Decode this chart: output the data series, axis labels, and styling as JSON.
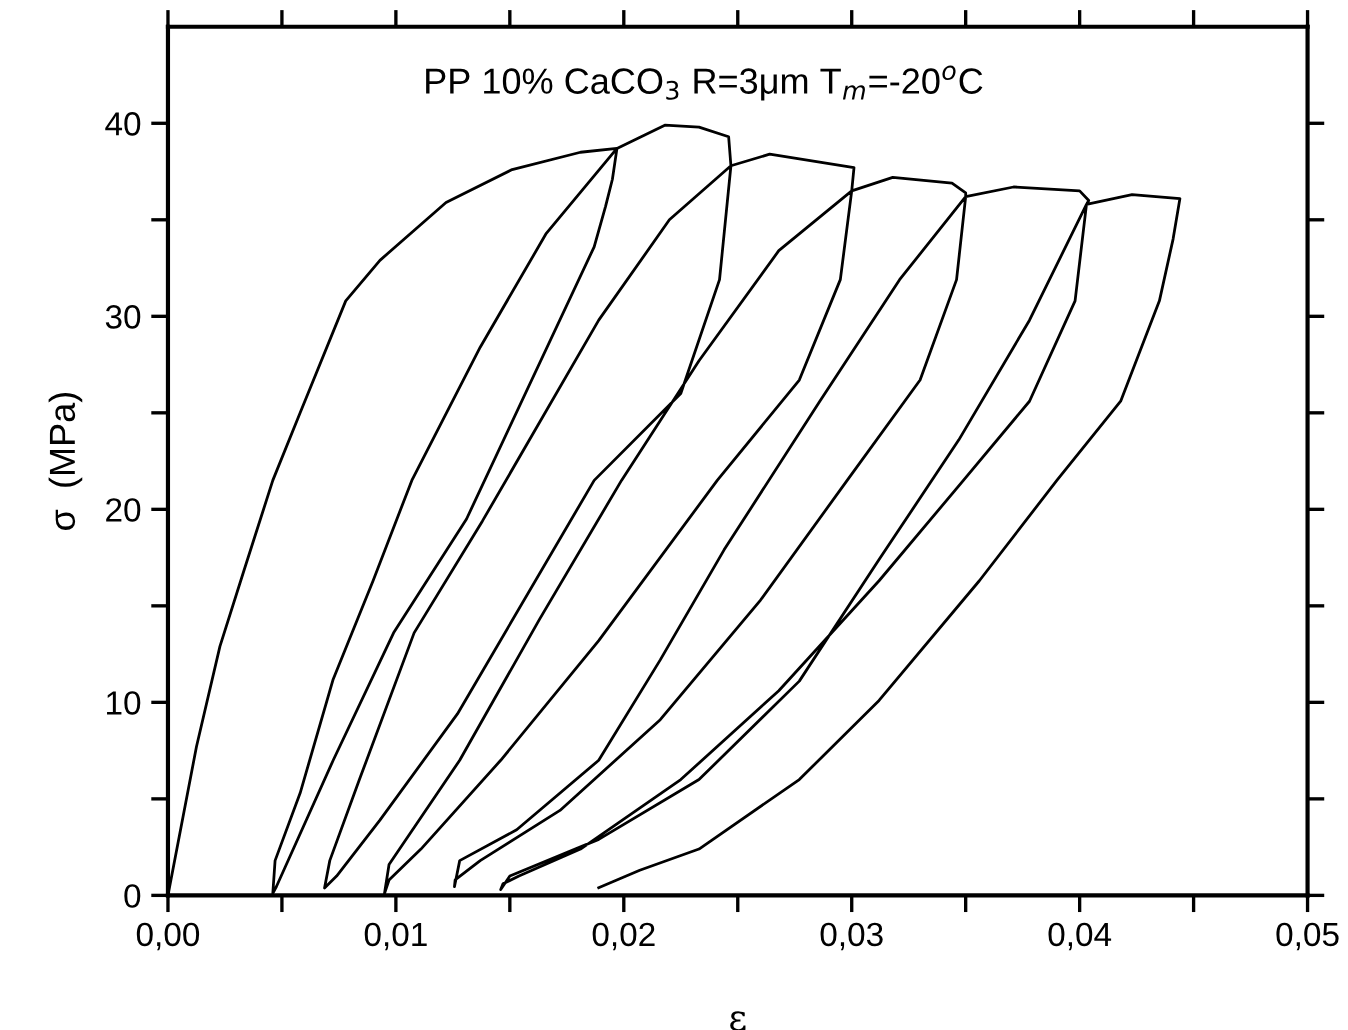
{
  "chart_data": {
    "type": "line",
    "title": "PP 10% CaCO$_{3}$ R=3μm T$_{m}$=-20$^{o}$C",
    "xlabel": "ε",
    "ylabel": "σ  (MPa)",
    "xlim": [
      0,
      0.05
    ],
    "ylim": [
      0,
      45
    ],
    "xticks": [
      {
        "value": 0,
        "label": "0,00"
      },
      {
        "value": 0.005,
        "label": null
      },
      {
        "value": 0.01,
        "label": "0,01"
      },
      {
        "value": 0.015,
        "label": null
      },
      {
        "value": 0.02,
        "label": "0,02"
      },
      {
        "value": 0.025,
        "label": null
      },
      {
        "value": 0.03,
        "label": "0,03"
      },
      {
        "value": 0.035,
        "label": null
      },
      {
        "value": 0.04,
        "label": "0,04"
      },
      {
        "value": 0.045,
        "label": null
      },
      {
        "value": 0.05,
        "label": "0,05"
      }
    ],
    "yticks": [
      0,
      {
        "value": 5,
        "label": null
      },
      10,
      {
        "value": 15,
        "label": null
      },
      20,
      {
        "value": 25,
        "label": null
      },
      30,
      {
        "value": 35,
        "label": null
      },
      40
    ],
    "grid": false,
    "legend": false,
    "marker": "none",
    "line_style": "solid",
    "series": [
      {
        "color": "#000000",
        "x": [
          0,
          0.00125,
          0.00228,
          0.0033,
          0.0046,
          0.0058,
          0.0078,
          0.0093,
          0.0122,
          0.0151,
          0.0181,
          0.0197,
          0.0195,
          0.0192,
          0.0187,
          0.0131,
          0.0099,
          0.00725,
          0.00476,
          0.0046,
          0.0047,
          0.0058,
          0.00725,
          0.009,
          0.0107,
          0.0137,
          0.0166,
          0.0197,
          0.0218,
          0.0233,
          0.0246,
          0.0247,
          0.0242,
          0.0225,
          0.0187,
          0.0127,
          0.0093,
          0.0074,
          0.00687,
          0.0071,
          0.0084,
          0.0108,
          0.0138,
          0.0189,
          0.022,
          0.0247,
          0.0264,
          0.0301,
          0.03,
          0.0295,
          0.0277,
          0.0241,
          0.0189,
          0.0146,
          0.0111,
          0.0097,
          0.0095,
          0.0097,
          0.0128,
          0.0163,
          0.0199,
          0.0233,
          0.0268,
          0.03,
          0.0318,
          0.0344,
          0.035,
          0.035,
          0.0346,
          0.033,
          0.0298,
          0.026,
          0.0216,
          0.0172,
          0.0137,
          0.0126,
          0.01257,
          0.0128,
          0.0153,
          0.0189,
          0.0216,
          0.0244,
          0.0286,
          0.0321,
          0.035,
          0.0371,
          0.04,
          0.0404,
          0.0403,
          0.0398,
          0.0378,
          0.0349,
          0.0312,
          0.0268,
          0.0225,
          0.0181,
          0.0154,
          0.0147,
          0.0146,
          0.015,
          0.0189,
          0.0233,
          0.0277,
          0.0312,
          0.0347,
          0.0378,
          0.0403,
          0.0423,
          0.0444,
          0.0441,
          0.0435,
          0.0418,
          0.039,
          0.0356,
          0.0312,
          0.0277,
          0.0233,
          0.0207,
          0.0189
        ],
        "values": [
          0,
          7.7,
          12.9,
          16.7,
          21.5,
          25.0,
          30.8,
          32.9,
          35.9,
          37.6,
          38.5,
          38.7,
          37.1,
          35.7,
          33.6,
          19.5,
          13.6,
          7.0,
          0.46,
          0.1,
          1.8,
          5.3,
          11.2,
          16.3,
          21.5,
          28.4,
          34.3,
          38.7,
          39.9,
          39.8,
          39.3,
          37.8,
          31.9,
          26.0,
          21.5,
          9.4,
          3.9,
          1.0,
          0.38,
          1.8,
          6.0,
          13.6,
          19.4,
          29.8,
          35.0,
          37.8,
          38.4,
          37.7,
          36.5,
          31.9,
          26.7,
          21.5,
          13.2,
          7.0,
          2.4,
          0.8,
          0.1,
          1.6,
          7.0,
          14.3,
          21.5,
          27.7,
          33.4,
          36.5,
          37.2,
          36.9,
          36.4,
          36.2,
          31.9,
          26.7,
          21.5,
          15.3,
          9.1,
          4.4,
          1.8,
          0.8,
          0.45,
          1.8,
          3.4,
          7.0,
          12.2,
          17.9,
          25.6,
          31.9,
          36.2,
          36.7,
          36.5,
          36.0,
          35.8,
          30.8,
          25.6,
          21.5,
          16.3,
          10.6,
          6.0,
          2.4,
          1.0,
          0.6,
          0.3,
          1.0,
          2.9,
          6.0,
          11.1,
          17.4,
          23.6,
          29.8,
          35.8,
          36.3,
          36.1,
          34.0,
          30.8,
          25.6,
          21.5,
          16.3,
          10.1,
          6.0,
          2.4,
          1.3,
          0.4
        ]
      }
    ]
  }
}
